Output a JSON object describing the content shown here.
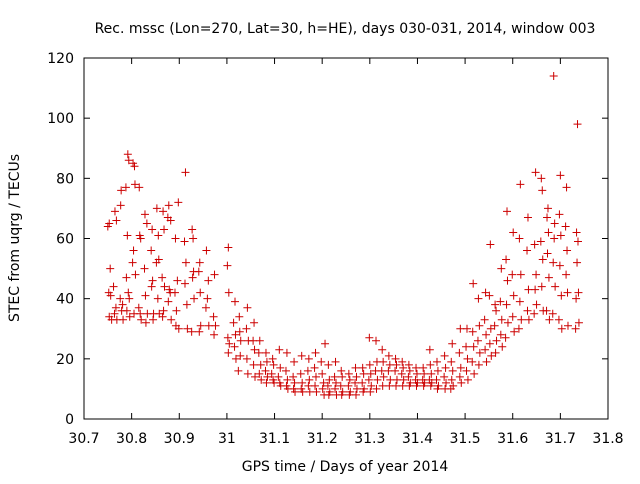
{
  "chart_data": {
    "type": "scatter",
    "title": "Rec. mssc (Lon=270, Lat=30, h=HE), days 030-031, 2014, window 003",
    "xlabel": "GPS time / Days of year 2014",
    "ylabel": "STEC from uqrg / TECUs",
    "xlim": [
      30.7,
      31.8
    ],
    "ylim": [
      0,
      120
    ],
    "xticks": [
      "30.7",
      "30.8",
      "30.9",
      "31",
      "31.1",
      "31.2",
      "31.3",
      "31.4",
      "31.5",
      "31.6",
      "31.7",
      "31.8"
    ],
    "yticks": [
      "0",
      "20",
      "40",
      "60",
      "80",
      "100",
      "120"
    ],
    "grid": false,
    "marker": "+",
    "color": "#cc0000",
    "points": [
      [
        30.753,
        65
      ],
      [
        30.75,
        64
      ],
      [
        30.755,
        50
      ],
      [
        30.752,
        42
      ],
      [
        30.756,
        41
      ],
      [
        30.753,
        34
      ],
      [
        30.758,
        33
      ],
      [
        30.765,
        69
      ],
      [
        30.768,
        66
      ],
      [
        30.762,
        44
      ],
      [
        30.767,
        37
      ],
      [
        30.764,
        35
      ],
      [
        30.769,
        33
      ],
      [
        30.778,
        76
      ],
      [
        30.777,
        71
      ],
      [
        30.781,
        38
      ],
      [
        30.776,
        40
      ],
      [
        30.779,
        36
      ],
      [
        30.782,
        33
      ],
      [
        30.792,
        88
      ],
      [
        30.794,
        86
      ],
      [
        30.788,
        77
      ],
      [
        30.791,
        61
      ],
      [
        30.789,
        47
      ],
      [
        30.793,
        42
      ],
      [
        30.795,
        40
      ],
      [
        30.79,
        36
      ],
      [
        30.796,
        34
      ],
      [
        30.803,
        85
      ],
      [
        30.806,
        84
      ],
      [
        30.807,
        78
      ],
      [
        30.804,
        56
      ],
      [
        30.802,
        52
      ],
      [
        30.808,
        48
      ],
      [
        30.805,
        35
      ],
      [
        30.816,
        77
      ],
      [
        30.817,
        61
      ],
      [
        30.819,
        60
      ],
      [
        30.815,
        37
      ],
      [
        30.818,
        35
      ],
      [
        30.82,
        33
      ],
      [
        30.828,
        68
      ],
      [
        30.832,
        65
      ],
      [
        30.827,
        50
      ],
      [
        30.829,
        41
      ],
      [
        30.833,
        35
      ],
      [
        30.83,
        32
      ],
      [
        30.843,
        63
      ],
      [
        30.841,
        56
      ],
      [
        30.844,
        46
      ],
      [
        30.842,
        44
      ],
      [
        30.846,
        35
      ],
      [
        30.845,
        33
      ],
      [
        30.853,
        70
      ],
      [
        30.856,
        61
      ],
      [
        30.857,
        53
      ],
      [
        30.852,
        52
      ],
      [
        30.855,
        40
      ],
      [
        30.858,
        35
      ],
      [
        30.866,
        69
      ],
      [
        30.868,
        63
      ],
      [
        30.864,
        47
      ],
      [
        30.869,
        44
      ],
      [
        30.867,
        36
      ],
      [
        30.865,
        34
      ],
      [
        30.878,
        71
      ],
      [
        30.876,
        67
      ],
      [
        30.882,
        66
      ],
      [
        30.879,
        43
      ],
      [
        30.881,
        42
      ],
      [
        30.877,
        39
      ],
      [
        30.883,
        33
      ],
      [
        30.898,
        72
      ],
      [
        30.892,
        60
      ],
      [
        30.896,
        46
      ],
      [
        30.891,
        42
      ],
      [
        30.894,
        36
      ],
      [
        30.893,
        31
      ],
      [
        30.899,
        30
      ],
      [
        30.913,
        82
      ],
      [
        30.911,
        59
      ],
      [
        30.914,
        52
      ],
      [
        30.912,
        45
      ],
      [
        30.916,
        38
      ],
      [
        30.917,
        30
      ],
      [
        30.927,
        63
      ],
      [
        30.929,
        60
      ],
      [
        30.93,
        49
      ],
      [
        30.928,
        47
      ],
      [
        30.931,
        40
      ],
      [
        30.926,
        29
      ],
      [
        30.943,
        52
      ],
      [
        30.941,
        49
      ],
      [
        30.944,
        42
      ],
      [
        30.945,
        31
      ],
      [
        30.942,
        29
      ],
      [
        30.957,
        56
      ],
      [
        30.961,
        46
      ],
      [
        30.959,
        40
      ],
      [
        30.956,
        37
      ],
      [
        30.962,
        31
      ],
      [
        30.974,
        48
      ],
      [
        30.972,
        34
      ],
      [
        30.976,
        31
      ],
      [
        30.973,
        28
      ],
      [
        31.003,
        57
      ],
      [
        31.001,
        51
      ],
      [
        31.004,
        42
      ],
      [
        31.002,
        27
      ],
      [
        31.005,
        25
      ],
      [
        31.003,
        22
      ],
      [
        31.017,
        39
      ],
      [
        31.014,
        32
      ],
      [
        31.018,
        28
      ],
      [
        31.016,
        24
      ],
      [
        31.019,
        20
      ],
      [
        31.026,
        34
      ],
      [
        31.027,
        29
      ],
      [
        31.029,
        26
      ],
      [
        31.028,
        21
      ],
      [
        31.024,
        16
      ],
      [
        31.043,
        37
      ],
      [
        31.041,
        30
      ],
      [
        31.045,
        26
      ],
      [
        31.042,
        20
      ],
      [
        31.044,
        15
      ],
      [
        31.057,
        32
      ],
      [
        31.055,
        26
      ],
      [
        31.058,
        23
      ],
      [
        31.056,
        18
      ],
      [
        31.059,
        14
      ],
      [
        31.069,
        26
      ],
      [
        31.067,
        22
      ],
      [
        31.071,
        18
      ],
      [
        31.068,
        15
      ],
      [
        31.072,
        13
      ],
      [
        31.082,
        22
      ],
      [
        31.084,
        19
      ],
      [
        31.081,
        16
      ],
      [
        31.085,
        14
      ],
      [
        31.083,
        12
      ],
      [
        31.096,
        20
      ],
      [
        31.098,
        18
      ],
      [
        31.094,
        15
      ],
      [
        31.097,
        13
      ],
      [
        31.099,
        12
      ],
      [
        31.11,
        23
      ],
      [
        31.112,
        17
      ],
      [
        31.108,
        14
      ],
      [
        31.111,
        12
      ],
      [
        31.113,
        11
      ],
      [
        31.126,
        22
      ],
      [
        31.124,
        16
      ],
      [
        31.127,
        13
      ],
      [
        31.125,
        11
      ],
      [
        31.128,
        10
      ],
      [
        31.141,
        19
      ],
      [
        31.139,
        14
      ],
      [
        31.142,
        12
      ],
      [
        31.14,
        10
      ],
      [
        31.143,
        9
      ],
      [
        31.157,
        21
      ],
      [
        31.155,
        15
      ],
      [
        31.158,
        12
      ],
      [
        31.156,
        10
      ],
      [
        31.159,
        9
      ],
      [
        31.172,
        20
      ],
      [
        31.17,
        16
      ],
      [
        31.173,
        13
      ],
      [
        31.171,
        11
      ],
      [
        31.174,
        9
      ],
      [
        31.186,
        22
      ],
      [
        31.184,
        17
      ],
      [
        31.187,
        14
      ],
      [
        31.185,
        11
      ],
      [
        31.188,
        9
      ],
      [
        31.206,
        25
      ],
      [
        31.198,
        19
      ],
      [
        31.2,
        15
      ],
      [
        31.203,
        12
      ],
      [
        31.201,
        10
      ],
      [
        31.204,
        8
      ],
      [
        31.213,
        18
      ],
      [
        31.215,
        13
      ],
      [
        31.212,
        11
      ],
      [
        31.216,
        9
      ],
      [
        31.214,
        8
      ],
      [
        31.228,
        19
      ],
      [
        31.226,
        14
      ],
      [
        31.229,
        12
      ],
      [
        31.227,
        10
      ],
      [
        31.23,
        8
      ],
      [
        31.24,
        16
      ],
      [
        31.242,
        14
      ],
      [
        31.239,
        11
      ],
      [
        31.243,
        9
      ],
      [
        31.241,
        8
      ],
      [
        31.256,
        15
      ],
      [
        31.258,
        13
      ],
      [
        31.255,
        11
      ],
      [
        31.259,
        9
      ],
      [
        31.257,
        8
      ],
      [
        31.27,
        17
      ],
      [
        31.272,
        14
      ],
      [
        31.269,
        12
      ],
      [
        31.273,
        10
      ],
      [
        31.271,
        8
      ],
      [
        31.285,
        17
      ],
      [
        31.287,
        15
      ],
      [
        31.284,
        12
      ],
      [
        31.288,
        10
      ],
      [
        31.286,
        9
      ],
      [
        31.299,
        27
      ],
      [
        31.3,
        18
      ],
      [
        31.302,
        15
      ],
      [
        31.298,
        13
      ],
      [
        31.303,
        11
      ],
      [
        31.301,
        9
      ],
      [
        31.313,
        26
      ],
      [
        31.315,
        19
      ],
      [
        31.312,
        16
      ],
      [
        31.316,
        13
      ],
      [
        31.314,
        10
      ],
      [
        31.326,
        23
      ],
      [
        31.328,
        19
      ],
      [
        31.325,
        16
      ],
      [
        31.329,
        14
      ],
      [
        31.327,
        11
      ],
      [
        31.34,
        21
      ],
      [
        31.342,
        18
      ],
      [
        31.339,
        16
      ],
      [
        31.343,
        13
      ],
      [
        31.341,
        11
      ],
      [
        31.354,
        20
      ],
      [
        31.356,
        18
      ],
      [
        31.353,
        16
      ],
      [
        31.357,
        13
      ],
      [
        31.355,
        11
      ],
      [
        31.368,
        19
      ],
      [
        31.37,
        17
      ],
      [
        31.367,
        15
      ],
      [
        31.371,
        13
      ],
      [
        31.369,
        11
      ],
      [
        31.382,
        18
      ],
      [
        31.384,
        16
      ],
      [
        31.381,
        14
      ],
      [
        31.385,
        12
      ],
      [
        31.383,
        11
      ],
      [
        31.397,
        17
      ],
      [
        31.399,
        15
      ],
      [
        31.396,
        13
      ],
      [
        31.4,
        12
      ],
      [
        31.398,
        11
      ],
      [
        31.412,
        17
      ],
      [
        31.414,
        15
      ],
      [
        31.411,
        13
      ],
      [
        31.415,
        12
      ],
      [
        31.413,
        11
      ],
      [
        31.426,
        23
      ],
      [
        31.427,
        18
      ],
      [
        31.429,
        15
      ],
      [
        31.425,
        13
      ],
      [
        31.43,
        12
      ],
      [
        31.428,
        11
      ],
      [
        31.441,
        19
      ],
      [
        31.443,
        16
      ],
      [
        31.44,
        13
      ],
      [
        31.444,
        11
      ],
      [
        31.442,
        10
      ],
      [
        31.457,
        21
      ],
      [
        31.459,
        17
      ],
      [
        31.456,
        14
      ],
      [
        31.46,
        12
      ],
      [
        31.458,
        10
      ],
      [
        31.473,
        25
      ],
      [
        31.471,
        19
      ],
      [
        31.474,
        16
      ],
      [
        31.472,
        13
      ],
      [
        31.475,
        11
      ],
      [
        31.47,
        10
      ],
      [
        31.49,
        30
      ],
      [
        31.488,
        22
      ],
      [
        31.491,
        17
      ],
      [
        31.489,
        14
      ],
      [
        31.492,
        12
      ],
      [
        31.504,
        30
      ],
      [
        31.502,
        24
      ],
      [
        31.505,
        20
      ],
      [
        31.503,
        16
      ],
      [
        31.506,
        13
      ],
      [
        31.517,
        45
      ],
      [
        31.516,
        29
      ],
      [
        31.518,
        24
      ],
      [
        31.515,
        19
      ],
      [
        31.519,
        15
      ],
      [
        31.528,
        40
      ],
      [
        31.53,
        31
      ],
      [
        31.527,
        26
      ],
      [
        31.531,
        22
      ],
      [
        31.529,
        18
      ],
      [
        31.543,
        42
      ],
      [
        31.541,
        33
      ],
      [
        31.544,
        28
      ],
      [
        31.542,
        23
      ],
      [
        31.545,
        19
      ],
      [
        31.553,
        58
      ],
      [
        31.551,
        41
      ],
      [
        31.554,
        30
      ],
      [
        31.552,
        25
      ],
      [
        31.555,
        21
      ],
      [
        31.563,
        38
      ],
      [
        31.565,
        36
      ],
      [
        31.562,
        31
      ],
      [
        31.566,
        26
      ],
      [
        31.564,
        22
      ],
      [
        31.576,
        50
      ],
      [
        31.574,
        39
      ],
      [
        31.577,
        33
      ],
      [
        31.575,
        28
      ],
      [
        31.578,
        24
      ],
      [
        31.588,
        69
      ],
      [
        31.586,
        53
      ],
      [
        31.589,
        46
      ],
      [
        31.587,
        38
      ],
      [
        31.59,
        32
      ],
      [
        31.585,
        27
      ],
      [
        31.601,
        62
      ],
      [
        31.599,
        48
      ],
      [
        31.602,
        41
      ],
      [
        31.6,
        34
      ],
      [
        31.603,
        29
      ],
      [
        31.616,
        78
      ],
      [
        31.614,
        60
      ],
      [
        31.617,
        48
      ],
      [
        31.615,
        39
      ],
      [
        31.618,
        33
      ],
      [
        31.613,
        30
      ],
      [
        31.632,
        67
      ],
      [
        31.63,
        56
      ],
      [
        31.633,
        43
      ],
      [
        31.631,
        36
      ],
      [
        31.634,
        33
      ],
      [
        31.648,
        82
      ],
      [
        31.646,
        58
      ],
      [
        31.649,
        48
      ],
      [
        31.647,
        43
      ],
      [
        31.65,
        38
      ],
      [
        31.645,
        35
      ],
      [
        31.66,
        80
      ],
      [
        31.662,
        76
      ],
      [
        31.659,
        59
      ],
      [
        31.663,
        53
      ],
      [
        31.661,
        44
      ],
      [
        31.664,
        36
      ],
      [
        31.674,
        70
      ],
      [
        31.672,
        67
      ],
      [
        31.675,
        62
      ],
      [
        31.673,
        55
      ],
      [
        31.676,
        47
      ],
      [
        31.671,
        36
      ],
      [
        31.677,
        33
      ],
      [
        31.686,
        114
      ],
      [
        31.688,
        65
      ],
      [
        31.687,
        60
      ],
      [
        31.685,
        52
      ],
      [
        31.689,
        44
      ],
      [
        31.684,
        35
      ],
      [
        31.7,
        81
      ],
      [
        31.698,
        68
      ],
      [
        31.701,
        61
      ],
      [
        31.699,
        51
      ],
      [
        31.702,
        41
      ],
      [
        31.697,
        33
      ],
      [
        31.703,
        30
      ],
      [
        31.713,
        77
      ],
      [
        31.711,
        64
      ],
      [
        31.714,
        56
      ],
      [
        31.712,
        48
      ],
      [
        31.715,
        42
      ],
      [
        31.716,
        31
      ],
      [
        31.736,
        98
      ],
      [
        31.734,
        62
      ],
      [
        31.737,
        59
      ],
      [
        31.735,
        52
      ],
      [
        31.738,
        42
      ],
      [
        31.733,
        40
      ],
      [
        31.739,
        32
      ],
      [
        31.732,
        30
      ]
    ]
  }
}
